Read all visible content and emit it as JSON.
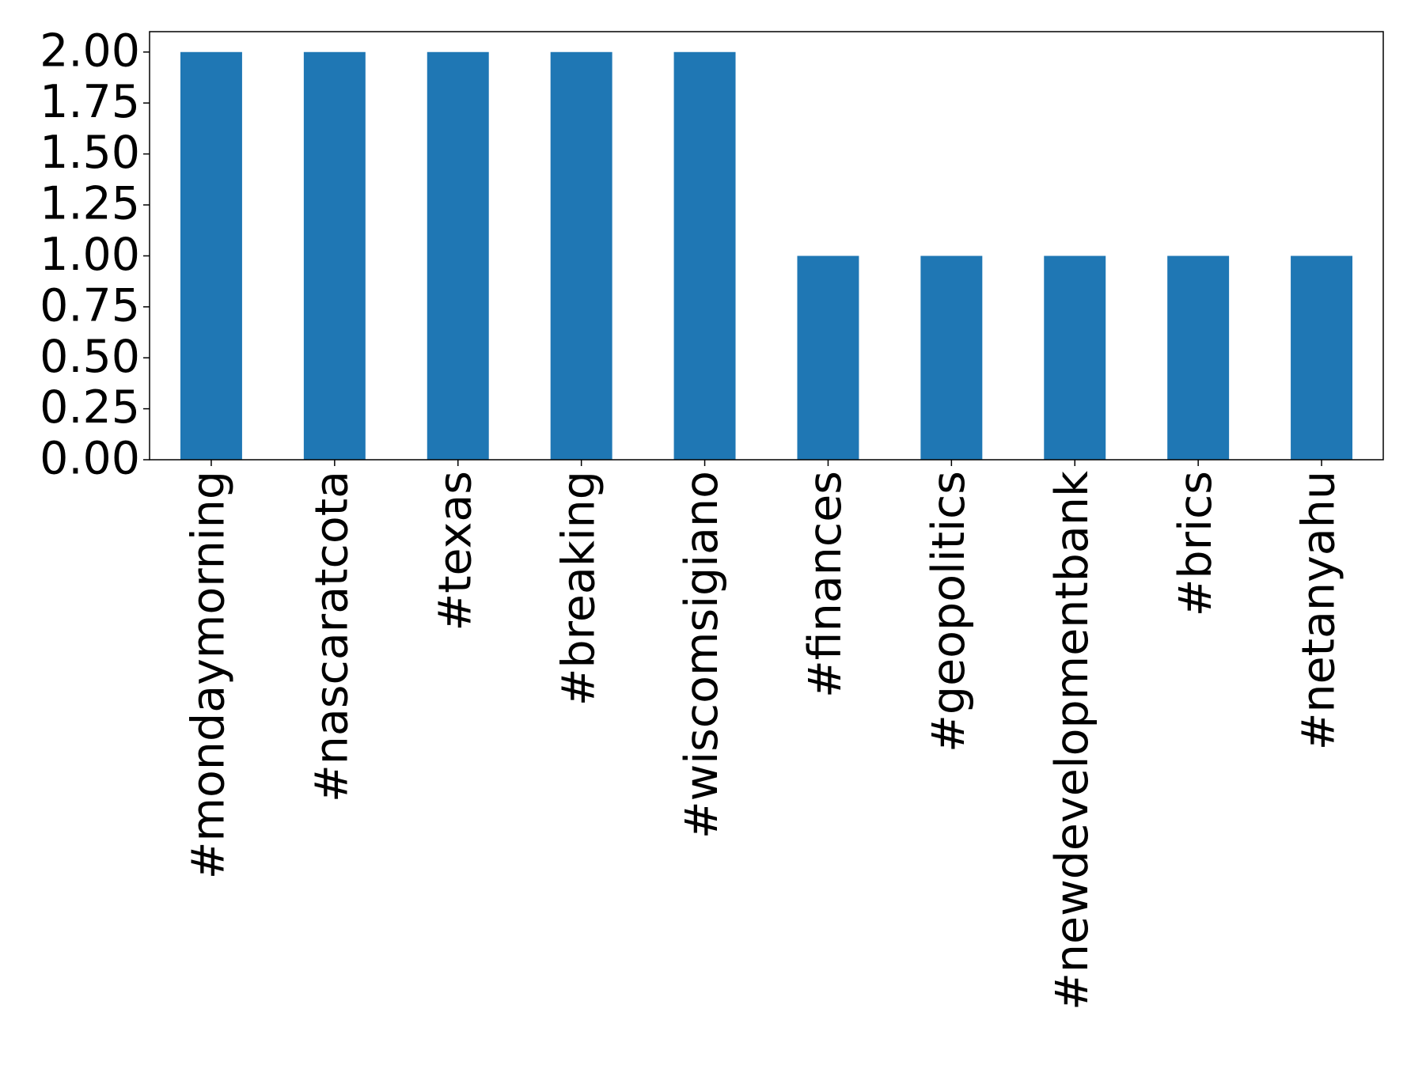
{
  "chart_data": {
    "type": "bar",
    "categories": [
      "#mondaymorning",
      "#nascaratcota",
      "#texas",
      "#breaking",
      "#wiscomsigiano",
      "#finances",
      "#geopolitics",
      "#newdevelopmentbank",
      "#brics",
      "#netanyahu"
    ],
    "values": [
      2,
      2,
      2,
      2,
      2,
      1,
      1,
      1,
      1,
      1
    ],
    "color": "#1f77b4",
    "ylim": [
      0,
      2.1
    ],
    "yticks": [
      {
        "value": 0,
        "label": "0.00"
      },
      {
        "value": 0.25,
        "label": "0.25"
      },
      {
        "value": 0.5,
        "label": "0.50"
      },
      {
        "value": 0.75,
        "label": "0.75"
      },
      {
        "value": 1,
        "label": "1.00"
      },
      {
        "value": 1.25,
        "label": "1.25"
      },
      {
        "value": 1.5,
        "label": "1.50"
      },
      {
        "value": 1.75,
        "label": "1.75"
      },
      {
        "value": 2,
        "label": "2.00"
      }
    ],
    "grid": false
  }
}
